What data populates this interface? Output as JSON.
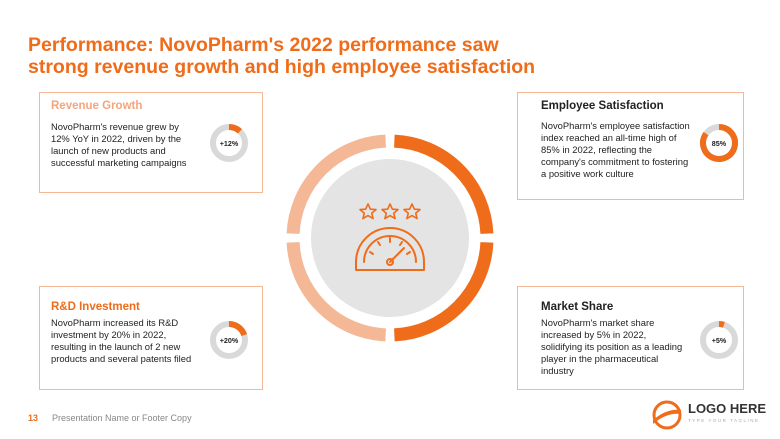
{
  "title": {
    "line1": "Performance: NovoPharm's 2022 performance saw",
    "line2": "strong revenue growth and high employee satisfaction"
  },
  "cards": {
    "revenue": {
      "heading": "Revenue Growth",
      "body": "NovoPharm's revenue grew by 12% YoY in 2022, driven by the launch of new products and successful marketing campaigns",
      "badge": "+12%",
      "fraction": 0.12
    },
    "employee": {
      "heading": "Employee Satisfaction",
      "body": "NovoPharm's employee satisfaction index reached an all-time high of 85% in 2022, reflecting the company's commitment to fostering a positive work culture",
      "badge": "85%",
      "fraction": 0.85
    },
    "rnd": {
      "heading": "R&D Investment",
      "body": "NovoPharm increased its R&D investment by 20% in 2022, resulting in the launch of 2 new products and several patents filed",
      "badge": "+20%",
      "fraction": 0.2
    },
    "market": {
      "heading": "Market Share",
      "body": "NovoPharm's market share increased by 5% in 2022, solidifying its position as a leading player in the pharmaceutical industry",
      "badge": "+5%",
      "fraction": 0.05
    }
  },
  "center_graphic": {
    "icon": "speedometer-with-stars-icon"
  },
  "footer": {
    "page_number": "13",
    "text": "Presentation Name or Footer Copy"
  },
  "logo": {
    "text": "LOGO HERE",
    "tagline": "TYPE YOUR TAGLINE"
  },
  "colors": {
    "accent": "#ef6c1a",
    "accent_light": "#f4b896",
    "track": "#d9d9d9",
    "center_fill": "#e4e4e4"
  }
}
